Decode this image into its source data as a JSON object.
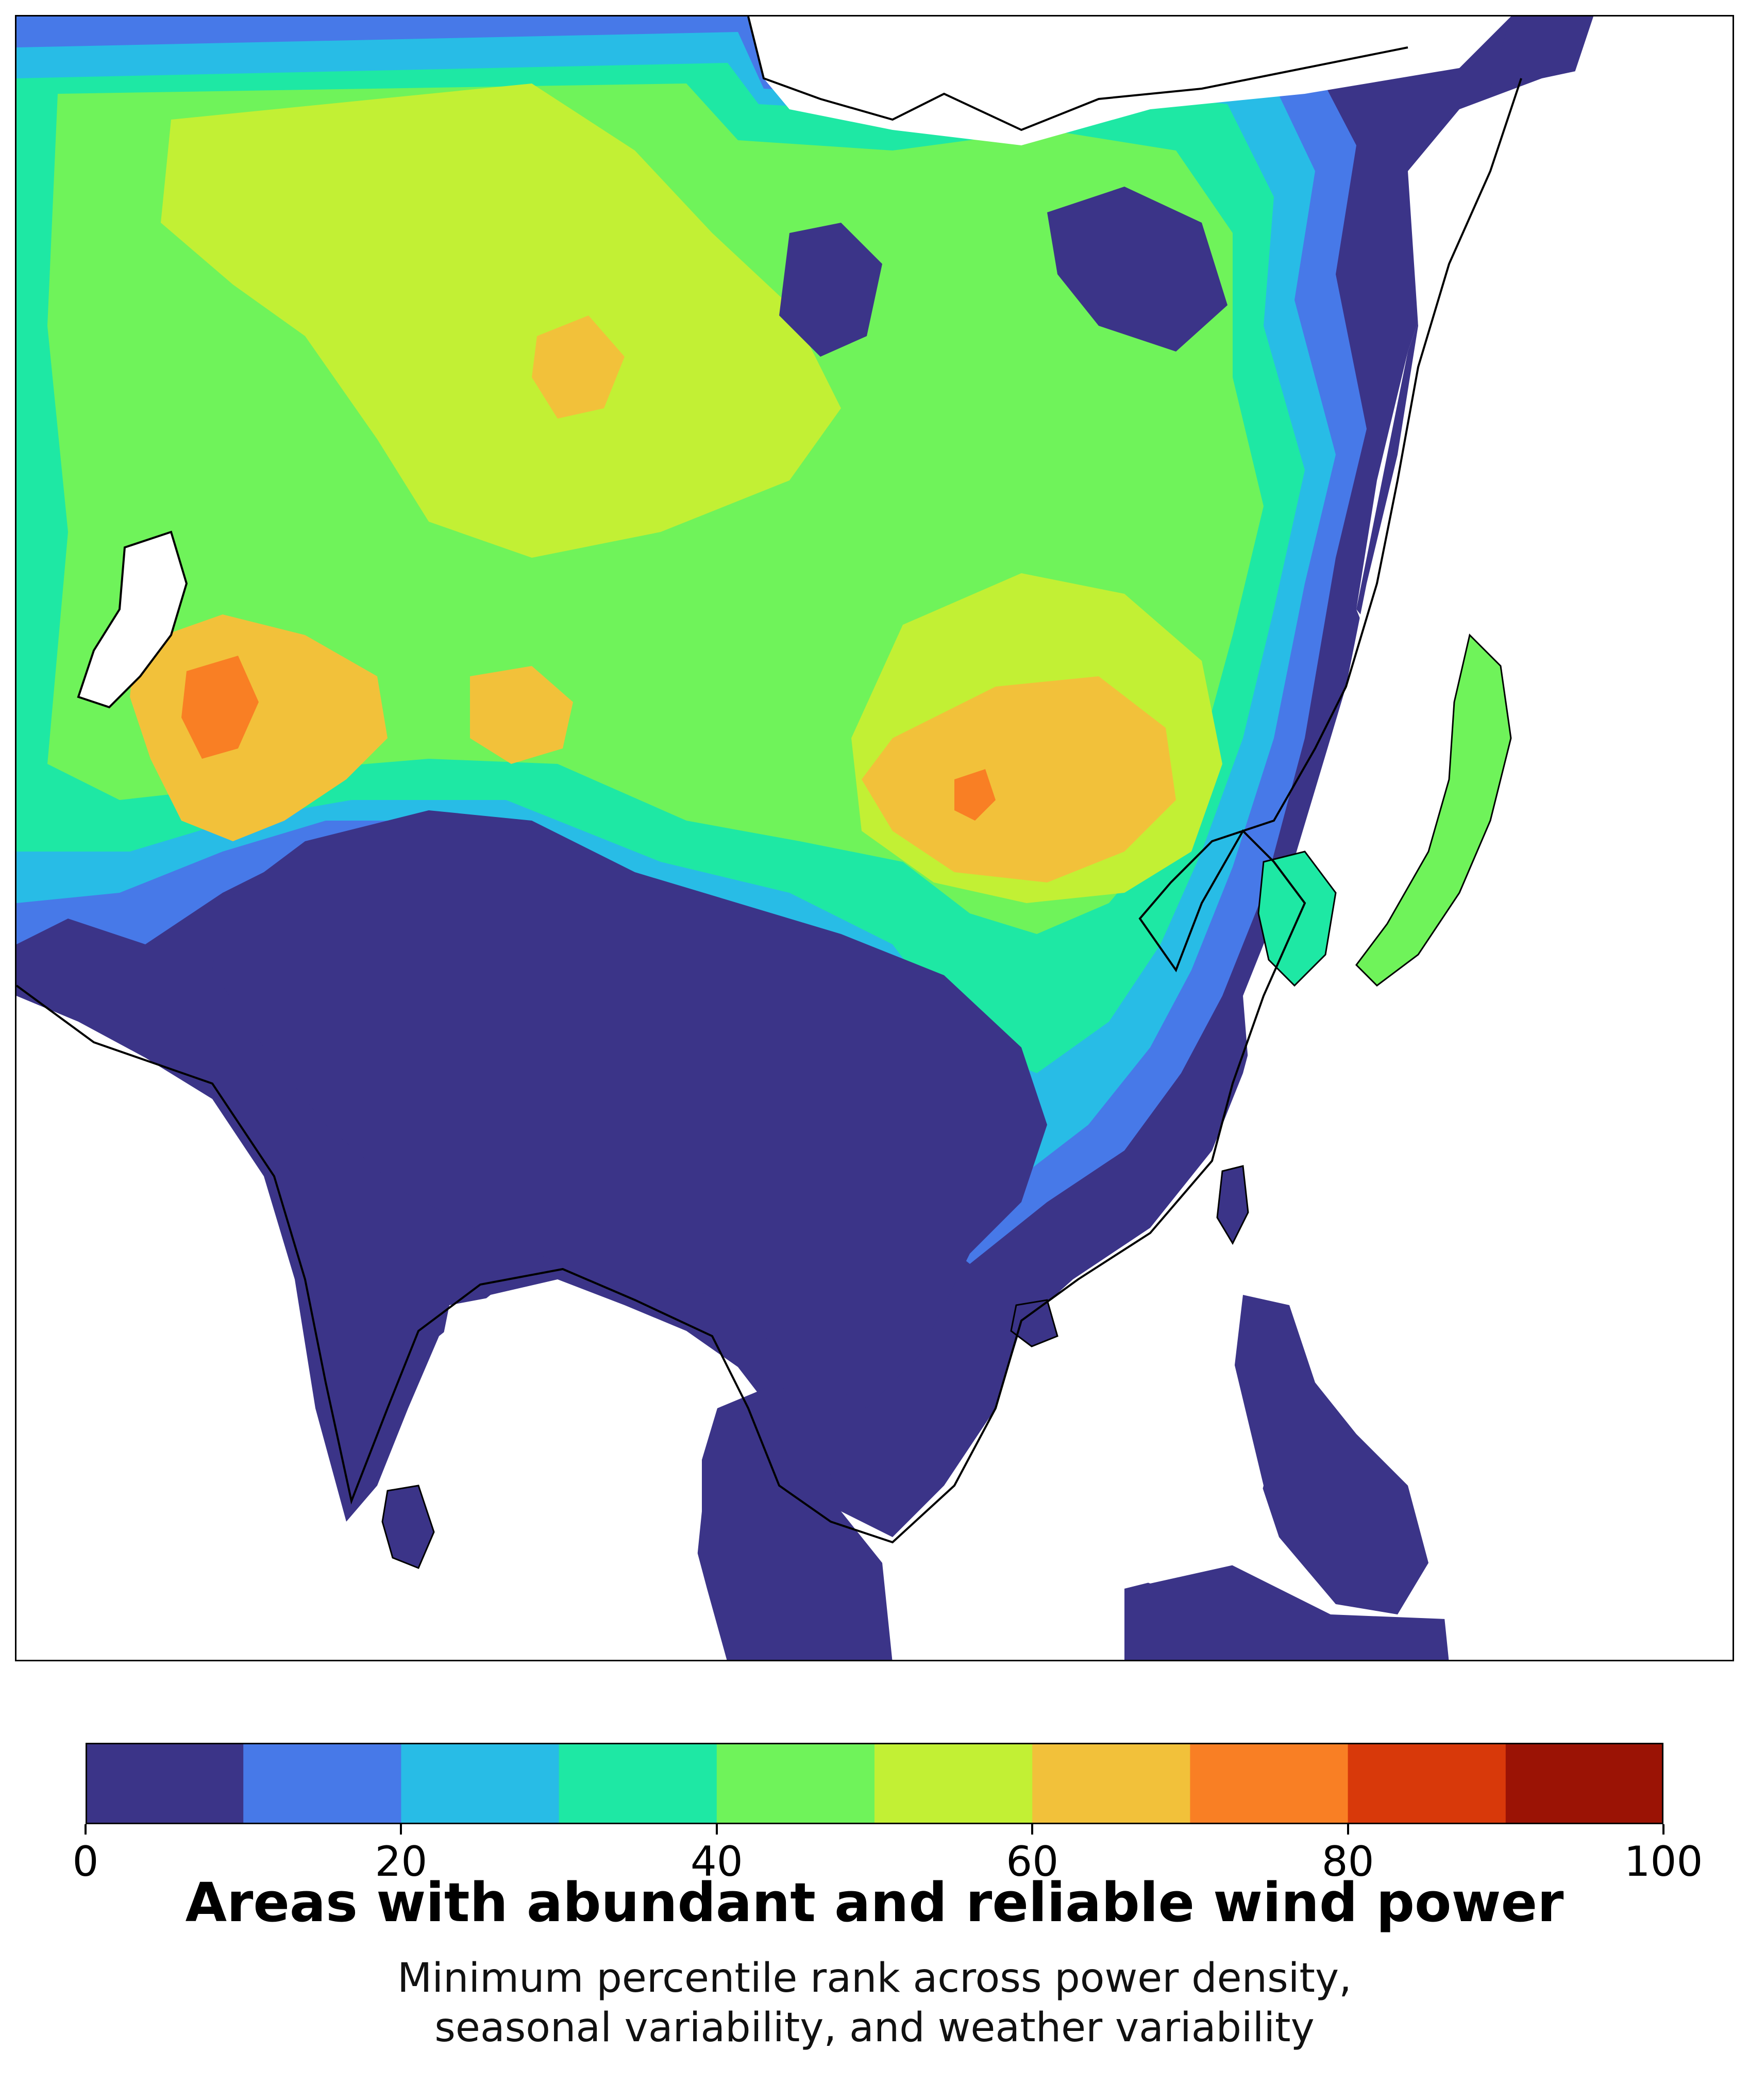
{
  "title": "Areas with abundant and reliable wind power",
  "subtitle": {
    "line1": "Minimum percentile rank across power density,",
    "line2": "seasonal variability, and weather variability"
  },
  "colorbar": {
    "min": 0,
    "max": 100,
    "step": 10,
    "ticks": [
      "0",
      "20",
      "40",
      "60",
      "80",
      "100"
    ],
    "colors": [
      "#3b3488",
      "#4779e8",
      "#28bce6",
      "#1ee8a4",
      "#6ff35a",
      "#c2f034",
      "#f2c13a",
      "#f97f24",
      "#d8390a",
      "#9b1305"
    ]
  },
  "map": {
    "region": "Asia",
    "colors": {
      "land_low": "#3b3488",
      "ocean": "#ffffff",
      "coastline": "#000000"
    }
  }
}
